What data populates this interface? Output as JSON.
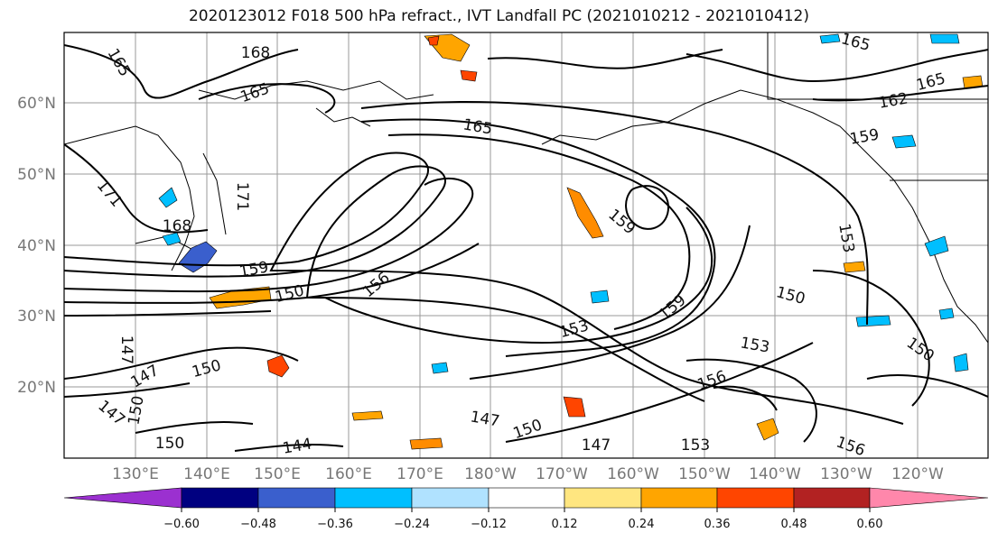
{
  "title": "2020123012 F018 500 hPa refract., IVT Landfall PC (2021010212 - 2021010412)",
  "lat_labels": [
    "60°N",
    "50°N",
    "40°N",
    "30°N",
    "20°N"
  ],
  "lon_labels": [
    "130°E",
    "140°E",
    "150°E",
    "160°E",
    "170°E",
    "180°W",
    "170°W",
    "160°W",
    "150°W",
    "140°W",
    "130°W",
    "120°W"
  ],
  "contour_labels": [
    "165",
    "168",
    "165",
    "165",
    "165",
    "162",
    "165",
    "159",
    "171",
    "171",
    "168",
    "159",
    "150",
    "156",
    "159",
    "153",
    "150",
    "153",
    "150",
    "147",
    "147",
    "150",
    "150",
    "147",
    "147",
    "144",
    "150",
    "147",
    "153",
    "156",
    "156",
    "153",
    "150",
    "159"
  ],
  "colorbar": {
    "colors": [
      "#9b30d0",
      "#000080",
      "#3a5fcd",
      "#00bfff",
      "#b0e2ff",
      "#ffffff",
      "#ffe680",
      "#ffa500",
      "#ff4500",
      "#b22222",
      "#ff87ab"
    ],
    "tick_labels": [
      "−0.60",
      "−0.48",
      "−0.36",
      "−0.24",
      "−0.12",
      "0.12",
      "0.24",
      "0.36",
      "0.48",
      "0.60"
    ]
  }
}
